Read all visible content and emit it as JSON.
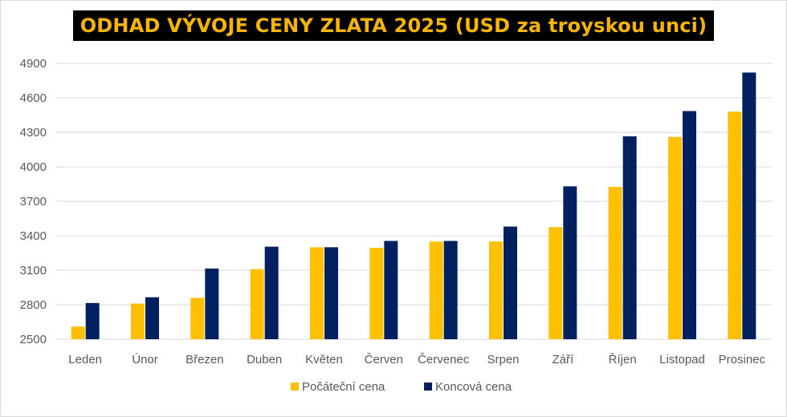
{
  "chart_data": {
    "type": "bar",
    "title": "ODHAD VÝVOJE CENY ZLATA 2025 (USD za troyskou unci)",
    "xlabel": "",
    "ylabel": "",
    "categories": [
      "Leden",
      "Únor",
      "Březen",
      "Duben",
      "Květen",
      "Červen",
      "Červenec",
      "Srpen",
      "Září",
      "Říjen",
      "Listopad",
      "Prosinec"
    ],
    "series": [
      {
        "name": "Počáteční cena",
        "color": "#ffc000",
        "values": [
          2610,
          2810,
          2860,
          3110,
          3300,
          3295,
          3350,
          3350,
          3475,
          3825,
          4260,
          4480
        ]
      },
      {
        "name": "Koncová cena",
        "color": "#002060",
        "values": [
          2815,
          2865,
          3115,
          3305,
          3300,
          3355,
          3355,
          3480,
          3830,
          4265,
          4485,
          4820
        ]
      }
    ],
    "ylim": [
      2500,
      4900
    ],
    "yticks": [
      2500,
      2800,
      3100,
      3400,
      3700,
      4000,
      4300,
      4600,
      4900
    ],
    "grid": true,
    "legend": "bottom-center"
  },
  "colors": {
    "title_bg": "#000000",
    "title_text": "#f7b500",
    "grid": "#d9d9d9",
    "axis_text": "#595959"
  }
}
